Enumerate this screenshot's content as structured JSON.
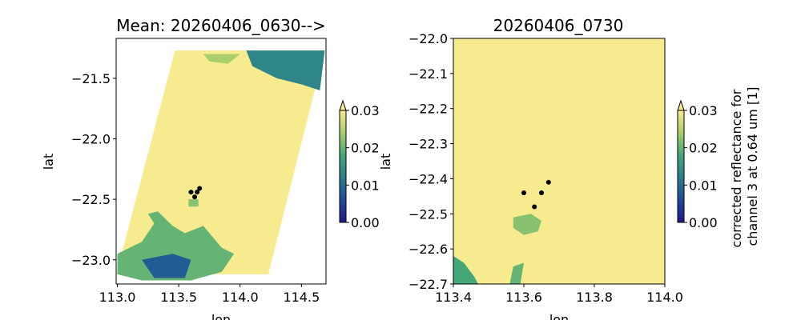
{
  "chart_data": [
    {
      "type": "heatmap",
      "title": "Mean: 20260406_0630-->",
      "xlabel": "lon",
      "ylabel": "lat",
      "xlim": [
        112.99,
        114.7
      ],
      "ylim": [
        -23.2,
        -21.17
      ],
      "xticks": [
        113.0,
        113.5,
        114.0,
        114.5
      ],
      "xtick_labels": [
        "113.0",
        "113.5",
        "114.0",
        "114.5"
      ],
      "yticks": [
        -21.5,
        -22.0,
        -22.5,
        -23.0
      ],
      "ytick_labels": [
        "−21.5",
        "−22.0",
        "−22.5",
        "−23.0"
      ],
      "swath_polygon": [
        [
          113.47,
          -21.27
        ],
        [
          114.69,
          -21.27
        ],
        [
          114.23,
          -23.12
        ],
        [
          112.99,
          -23.12
        ]
      ],
      "fill_value": 0.03,
      "regions": [
        {
          "polygon": [
            [
              114.05,
              -21.27
            ],
            [
              114.69,
              -21.27
            ],
            [
              114.65,
              -21.6
            ],
            [
              114.5,
              -21.55
            ],
            [
              114.3,
              -21.5
            ],
            [
              114.1,
              -21.4
            ]
          ],
          "value": 0.013
        },
        {
          "polygon": [
            [
              113.7,
              -21.3
            ],
            [
              114.0,
              -21.3
            ],
            [
              113.9,
              -21.38
            ],
            [
              113.75,
              -21.36
            ]
          ],
          "value": 0.024
        },
        {
          "polygon": [
            [
              113.0,
              -22.95
            ],
            [
              113.2,
              -22.85
            ],
            [
              113.3,
              -22.7
            ],
            [
              113.25,
              -22.62
            ],
            [
              113.33,
              -22.6
            ],
            [
              113.45,
              -22.72
            ],
            [
              113.55,
              -22.78
            ],
            [
              113.7,
              -22.72
            ],
            [
              113.85,
              -22.9
            ],
            [
              113.95,
              -22.95
            ],
            [
              113.85,
              -23.1
            ],
            [
              113.6,
              -23.17
            ],
            [
              113.2,
              -23.17
            ],
            [
              113.0,
              -23.12
            ]
          ],
          "value": 0.02
        },
        {
          "polygon": [
            [
              113.2,
              -23.0
            ],
            [
              113.45,
              -22.95
            ],
            [
              113.6,
              -23.0
            ],
            [
              113.55,
              -23.15
            ],
            [
              113.3,
              -23.15
            ]
          ],
          "value": 0.008
        },
        {
          "polygon": [
            [
              113.58,
              -22.5
            ],
            [
              113.66,
              -22.5
            ],
            [
              113.66,
              -22.56
            ],
            [
              113.58,
              -22.56
            ]
          ],
          "value": 0.022
        }
      ],
      "points": [
        {
          "lon": 113.6,
          "lat": -22.44
        },
        {
          "lon": 113.65,
          "lat": -22.44
        },
        {
          "lon": 113.63,
          "lat": -22.48
        },
        {
          "lon": 113.67,
          "lat": -22.41
        }
      ],
      "colorbar": {
        "ticks": [
          0.0,
          0.01,
          0.02,
          0.03
        ],
        "tick_labels": [
          "0.00",
          "0.01",
          "0.02",
          "0.03"
        ],
        "extend": "max",
        "cmap": "haxby-like",
        "label": ""
      }
    },
    {
      "type": "heatmap",
      "title": "20260406_0730",
      "xlabel": "lon",
      "ylabel": "lat",
      "xlim": [
        113.4,
        114.0
      ],
      "ylim": [
        -22.7,
        -22.0
      ],
      "xticks": [
        113.4,
        113.6,
        113.8,
        114.0
      ],
      "xtick_labels": [
        "113.4",
        "113.6",
        "113.8",
        "114.0"
      ],
      "yticks": [
        -22.0,
        -22.1,
        -22.2,
        -22.3,
        -22.4,
        -22.5,
        -22.6,
        -22.7
      ],
      "ytick_labels": [
        "−22.0",
        "−22.1",
        "−22.2",
        "−22.3",
        "−22.4",
        "−22.5",
        "−22.6",
        "−22.7"
      ],
      "fill_value": 0.03,
      "regions": [
        {
          "polygon": [
            [
              113.57,
              -22.51
            ],
            [
              113.62,
              -22.5
            ],
            [
              113.65,
              -22.52
            ],
            [
              113.64,
              -22.55
            ],
            [
              113.6,
              -22.56
            ],
            [
              113.57,
              -22.54
            ]
          ],
          "value": 0.022
        },
        {
          "polygon": [
            [
              113.4,
              -22.62
            ],
            [
              113.43,
              -22.64
            ],
            [
              113.46,
              -22.68
            ],
            [
              113.47,
              -22.7
            ],
            [
              113.4,
              -22.7
            ]
          ],
          "value": 0.018
        },
        {
          "polygon": [
            [
              113.57,
              -22.65
            ],
            [
              113.6,
              -22.64
            ],
            [
              113.59,
              -22.7
            ],
            [
              113.56,
              -22.7
            ]
          ],
          "value": 0.02
        }
      ],
      "points": [
        {
          "lon": 113.6,
          "lat": -22.44
        },
        {
          "lon": 113.65,
          "lat": -22.44
        },
        {
          "lon": 113.63,
          "lat": -22.48
        },
        {
          "lon": 113.67,
          "lat": -22.41
        }
      ],
      "colorbar": {
        "ticks": [
          0.0,
          0.01,
          0.02,
          0.03
        ],
        "tick_labels": [
          "0.00",
          "0.01",
          "0.02",
          "0.03"
        ],
        "extend": "max",
        "cmap": "haxby-like",
        "label": "corrected reflectance for channel 3 at 0.64 um [1]"
      }
    }
  ]
}
